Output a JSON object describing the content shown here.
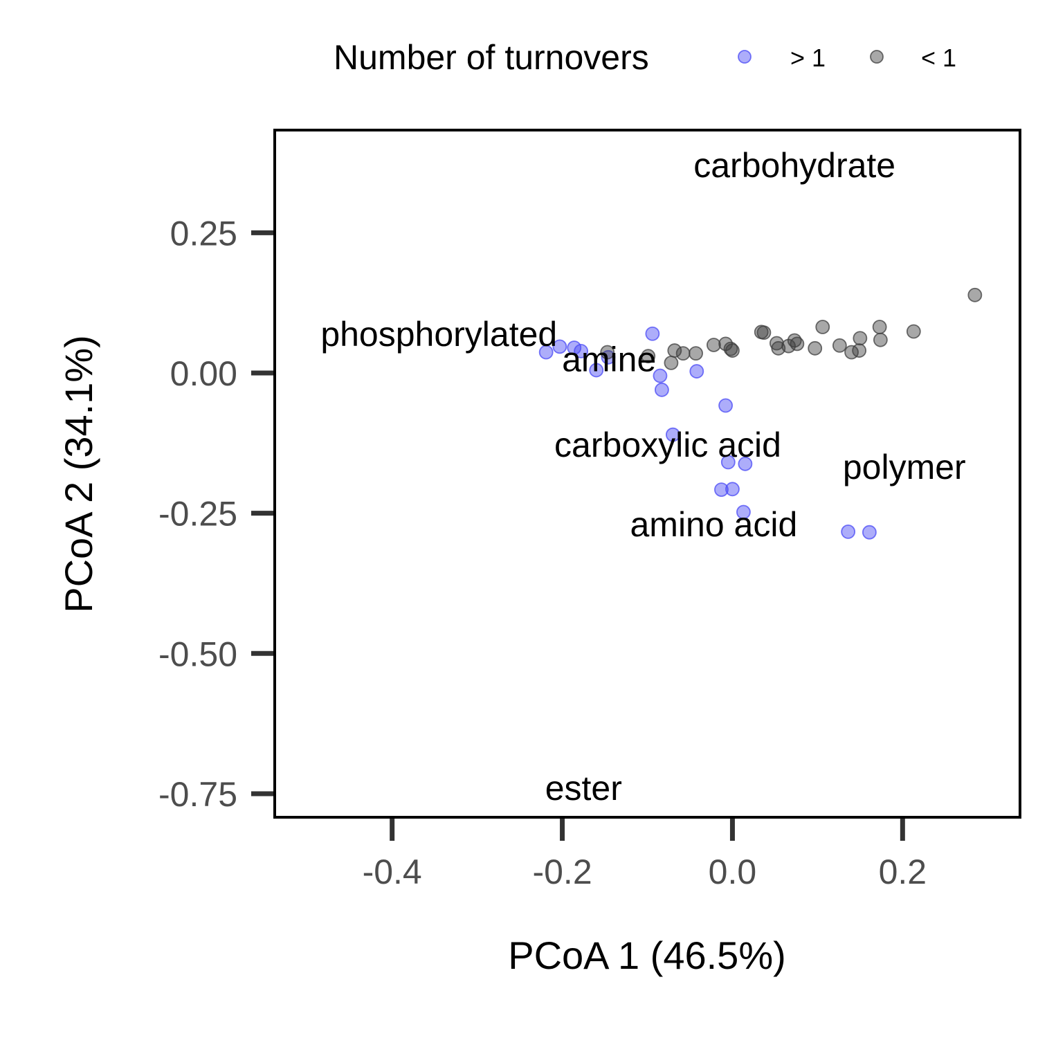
{
  "chart_data": {
    "type": "scatter",
    "xlabel": "PCoA 1 (46.5%)",
    "ylabel": "PCoA 2 (34.1%)",
    "xlim": [
      -0.538,
      0.338
    ],
    "ylim": [
      -0.792,
      0.433
    ],
    "xticks": [
      {
        "value": -0.4,
        "label": "-0.4"
      },
      {
        "value": -0.2,
        "label": "-0.2"
      },
      {
        "value": 0.0,
        "label": "0.0"
      },
      {
        "value": 0.2,
        "label": "0.2"
      }
    ],
    "yticks": [
      {
        "value": 0.25,
        "label": "0.25"
      },
      {
        "value": 0.0,
        "label": "0.00"
      },
      {
        "value": -0.25,
        "label": "-0.25"
      },
      {
        "value": -0.5,
        "label": "-0.50"
      },
      {
        "value": -0.75,
        "label": "-0.75"
      }
    ],
    "grid": false,
    "legend": {
      "title": "Number of turnovers",
      "position": "top"
    },
    "series": [
      {
        "name": "> 1",
        "color": "#4a4af5",
        "points": [
          {
            "x": -0.219,
            "y": 0.037
          },
          {
            "x": -0.203,
            "y": 0.047
          },
          {
            "x": -0.186,
            "y": 0.045
          },
          {
            "x": -0.178,
            "y": 0.039
          },
          {
            "x": -0.16,
            "y": 0.005
          },
          {
            "x": -0.146,
            "y": 0.028
          },
          {
            "x": -0.094,
            "y": 0.07
          },
          {
            "x": -0.085,
            "y": -0.005
          },
          {
            "x": -0.083,
            "y": -0.03
          },
          {
            "x": -0.07,
            "y": -0.11
          },
          {
            "x": -0.042,
            "y": 0.003
          },
          {
            "x": -0.008,
            "y": -0.058
          },
          {
            "x": -0.005,
            "y": -0.159
          },
          {
            "x": 0.015,
            "y": -0.162
          },
          {
            "x": -0.013,
            "y": -0.208
          },
          {
            "x": 0.0,
            "y": -0.207
          },
          {
            "x": 0.013,
            "y": -0.248
          },
          {
            "x": 0.136,
            "y": -0.283
          },
          {
            "x": 0.161,
            "y": -0.284
          }
        ]
      },
      {
        "name": "< 1",
        "color": "#3d3d3d",
        "points": [
          {
            "x": -0.147,
            "y": 0.037
          },
          {
            "x": -0.099,
            "y": 0.03
          },
          {
            "x": -0.072,
            "y": 0.018
          },
          {
            "x": -0.068,
            "y": 0.04
          },
          {
            "x": -0.058,
            "y": 0.035
          },
          {
            "x": -0.043,
            "y": 0.035
          },
          {
            "x": -0.022,
            "y": 0.05
          },
          {
            "x": -0.008,
            "y": 0.052
          },
          {
            "x": -0.002,
            "y": 0.043
          },
          {
            "x": 0.0,
            "y": 0.04
          },
          {
            "x": 0.034,
            "y": 0.073
          },
          {
            "x": 0.037,
            "y": 0.072
          },
          {
            "x": 0.052,
            "y": 0.053
          },
          {
            "x": 0.054,
            "y": 0.044
          },
          {
            "x": 0.066,
            "y": 0.048
          },
          {
            "x": 0.073,
            "y": 0.058
          },
          {
            "x": 0.076,
            "y": 0.052
          },
          {
            "x": 0.097,
            "y": 0.044
          },
          {
            "x": 0.106,
            "y": 0.082
          },
          {
            "x": 0.126,
            "y": 0.049
          },
          {
            "x": 0.14,
            "y": 0.037
          },
          {
            "x": 0.149,
            "y": 0.04
          },
          {
            "x": 0.15,
            "y": 0.062
          },
          {
            "x": 0.173,
            "y": 0.082
          },
          {
            "x": 0.174,
            "y": 0.059
          },
          {
            "x": 0.213,
            "y": 0.074
          },
          {
            "x": 0.285,
            "y": 0.139
          }
        ]
      }
    ],
    "annotations": [
      {
        "text": "carbohydrate",
        "x": 0.073,
        "y": 0.37
      },
      {
        "text": "phosphorylated",
        "x": -0.345,
        "y": 0.069
      },
      {
        "text": "amine",
        "x": -0.145,
        "y": 0.024
      },
      {
        "text": "carboxylic acid",
        "x": -0.076,
        "y": -0.128
      },
      {
        "text": "polymer",
        "x": 0.202,
        "y": -0.168
      },
      {
        "text": "amino acid",
        "x": -0.022,
        "y": -0.27
      },
      {
        "text": "ester",
        "x": -0.175,
        "y": -0.74
      }
    ]
  }
}
